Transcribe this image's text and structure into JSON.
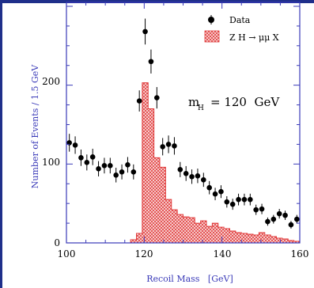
{
  "chart_data": {
    "type": "bar",
    "xlabel": "Recoil Mass   [GeV]",
    "ylabel": "Number of Events / 1.5 GeV",
    "xlim": [
      100,
      160
    ],
    "ylim": [
      0,
      305
    ],
    "x_ticks": [
      "100",
      "120",
      "140",
      "160"
    ],
    "y_ticks": [
      "0",
      "100",
      "200"
    ],
    "annotation": {
      "prefix": "m",
      "subscript": "H",
      "value": "= 120  GeV"
    },
    "colors": {
      "data": "#000000",
      "signal": "#e03a3a",
      "axes": "#3a3ab8"
    },
    "legend": {
      "position": "top-right",
      "entries": [
        {
          "label": "Data",
          "marker": "dot"
        },
        {
          "label": "Z H → μμ X",
          "marker": "hatched-box"
        }
      ]
    },
    "series": [
      {
        "name": "Data",
        "kind": "points",
        "x": [
          100.75,
          102.25,
          103.75,
          105.25,
          106.75,
          108.25,
          109.75,
          111.25,
          112.75,
          114.25,
          115.75,
          117.25,
          118.75,
          120.25,
          121.75,
          123.25,
          124.75,
          126.25,
          127.75,
          129.25,
          130.75,
          132.25,
          133.75,
          135.25,
          136.75,
          138.25,
          139.75,
          141.25,
          142.75,
          144.25,
          145.75,
          147.25,
          148.75,
          150.25,
          151.75,
          153.25,
          154.75,
          156.25,
          157.75,
          159.25
        ],
        "y": [
          127,
          124,
          108,
          102,
          109,
          94,
          98,
          98,
          86,
          90,
          99,
          90,
          180,
          268,
          230,
          184,
          122,
          125,
          123,
          93,
          88,
          84,
          85,
          80,
          70,
          62,
          65,
          52,
          49,
          55,
          55,
          55,
          42,
          43,
          27,
          30,
          37,
          35,
          23,
          30
        ],
        "err": [
          11.3,
          11.1,
          10.4,
          10.1,
          10.4,
          9.7,
          9.9,
          9.9,
          9.3,
          9.5,
          9.9,
          9.5,
          13.4,
          16.4,
          15.2,
          13.6,
          11.0,
          11.2,
          11.1,
          9.6,
          9.4,
          9.2,
          9.2,
          8.9,
          8.4,
          7.9,
          8.1,
          7.2,
          7.0,
          7.4,
          7.4,
          7.4,
          6.5,
          6.6,
          5.2,
          5.5,
          6.1,
          5.9,
          4.8,
          5.5
        ]
      },
      {
        "name": "Z H → μμ X",
        "kind": "histogram",
        "bin_edges": [
          100,
          101.5,
          103,
          104.5,
          106,
          107.5,
          109,
          110.5,
          112,
          113.5,
          115,
          116.5,
          118,
          119.5,
          121,
          122.5,
          124,
          125.5,
          127,
          128.5,
          130,
          131.5,
          133,
          134.5,
          136,
          137.5,
          139,
          140.5,
          142,
          143.5,
          145,
          146.5,
          148,
          149.5,
          151,
          152.5,
          154,
          155.5,
          157,
          158.5,
          160
        ],
        "values": [
          0,
          0,
          0,
          0,
          0,
          0,
          0,
          0,
          0,
          0,
          0,
          4,
          12,
          203,
          170,
          108,
          96,
          55,
          42,
          36,
          33,
          32,
          25,
          28,
          21,
          25,
          20,
          18,
          15,
          13,
          12,
          11,
          10,
          13,
          10,
          8,
          6,
          5,
          3,
          2
        ]
      }
    ]
  }
}
